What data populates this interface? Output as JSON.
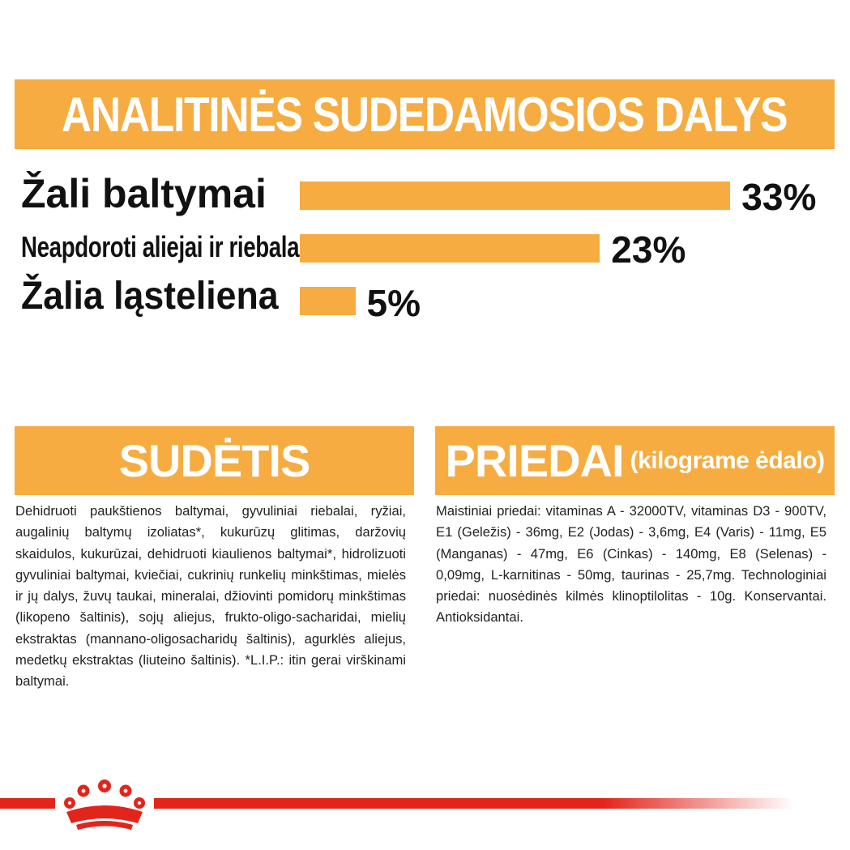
{
  "banner": {
    "title": "ANALITINĖS SUDEDAMOSIOS DALYS"
  },
  "nutrients": [
    {
      "label": "Žali baltymai",
      "value": "33%",
      "percent": 33
    },
    {
      "label": "Neapdoroti aliejai ir riebalai",
      "value": "23%",
      "percent": 23
    },
    {
      "label": "Žalia ląsteliena",
      "value": "5%",
      "percent": 5
    }
  ],
  "composition": {
    "title": "SUDĖTIS",
    "text": "Dehidruoti paukštienos baltymai, gyvuliniai riebalai, ryžiai, augalinių baltymų izoliatas*, kukurūzų glitimas, daržovių skaidulos, kukurūzai, dehidruoti kiaulienos baltymai*, hidrolizuoti gyvuliniai baltymai, kviečiai, cukrinių runkelių minkštimas, mielės ir jų dalys, žuvų taukai, mineralai, džiovinti pomidorų minkštimas (likopeno šaltinis), sojų aliejus, frukto-oligo-sacharidai, mielių ekstraktas (mannano-oligosacharidų šaltinis), agurklės aliejus, medetkų ekstraktas (liuteino šaltinis). *L.I.P.: itin gerai virškinami baltymai."
  },
  "additives": {
    "title": "PRIEDAI",
    "subtitle": "(kilograme ėdalo)",
    "text": "Maistiniai priedai: vitaminas A - 32000TV, vitaminas D3 - 900TV, E1 (Geležis) - 36mg, E2 (Jodas) - 3,6mg, E4 (Varis) - 11mg, E5 (Manganas) - 47mg, E6 (Cinkas) - 140mg, E8 (Selenas) - 0,09mg, L-karnitinas - 50mg, taurinas - 25,7mg. Technologiniai priedai: nuosėdinės kilmės klinoptilolitas - 10g. Konservantai. Antioksidantai."
  },
  "colors": {
    "accent": "#f6ac41",
    "brand_red": "#e3241b"
  },
  "icons": {
    "logo": "royal-canin-crown-icon"
  }
}
